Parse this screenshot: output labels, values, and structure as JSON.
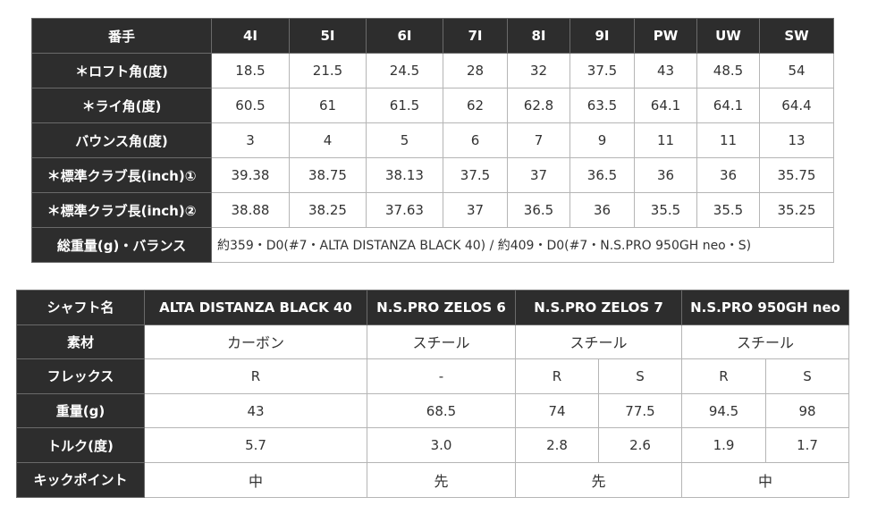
{
  "spec": {
    "header_label": "番手",
    "columns": [
      "4I",
      "5I",
      "6I",
      "7I",
      "8I",
      "9I",
      "PW",
      "UW",
      "SW"
    ],
    "rows": [
      {
        "label": "＊ロフト角(度)",
        "values": [
          "18.5",
          "21.5",
          "24.5",
          "28",
          "32",
          "37.5",
          "43",
          "48.5",
          "54"
        ]
      },
      {
        "label": "＊ライ角(度)",
        "values": [
          "60.5",
          "61",
          "61.5",
          "62",
          "62.8",
          "63.5",
          "64.1",
          "64.1",
          "64.4"
        ]
      },
      {
        "label": "バウンス角(度)",
        "values": [
          "3",
          "4",
          "5",
          "6",
          "7",
          "9",
          "11",
          "11",
          "13"
        ]
      },
      {
        "label": "＊標準クラブ長(inch)①",
        "values": [
          "39.38",
          "38.75",
          "38.13",
          "37.5",
          "37",
          "36.5",
          "36",
          "36",
          "35.75"
        ]
      },
      {
        "label": "＊標準クラブ長(inch)②",
        "values": [
          "38.88",
          "38.25",
          "37.63",
          "37",
          "36.5",
          "36",
          "35.5",
          "35.5",
          "35.25"
        ]
      }
    ],
    "weight_label": "総重量(g)・バランス",
    "weight_value": "約359・D0(#7・ALTA DISTANZA BLACK 40) / 約409・D0(#7・N.S.PRO 950GH neo・S)"
  },
  "shaft": {
    "header_label": "シャフト名",
    "shafts": [
      "ALTA DISTANZA BLACK 40",
      "N.S.PRO ZELOS 6",
      "N.S.PRO ZELOS 7",
      "N.S.PRO 950GH neo"
    ],
    "material_label": "素材",
    "materials": [
      "カーボン",
      "スチール",
      "スチール",
      "スチール"
    ],
    "flex_label": "フレックス",
    "flex": [
      "R",
      "-",
      "R",
      "S",
      "R",
      "S"
    ],
    "weight_label": "重量(g)",
    "weights": [
      "43",
      "68.5",
      "74",
      "77.5",
      "94.5",
      "98"
    ],
    "torque_label": "トルク(度)",
    "torques": [
      "5.7",
      "3.0",
      "2.8",
      "2.6",
      "1.9",
      "1.7"
    ],
    "kick_label": "キックポイント",
    "kick": [
      "中",
      "先",
      "先",
      "中"
    ]
  }
}
